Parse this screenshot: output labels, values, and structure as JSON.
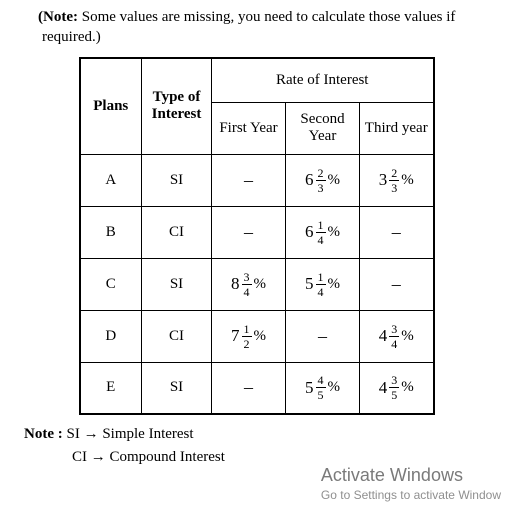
{
  "note_top_prefix": "(Note:",
  "note_top_body": " Some values are missing, you need to calculate those values if required.)",
  "header": {
    "plans": "Plans",
    "type": "Type of Interest",
    "rate": "Rate of Interest",
    "first": "First Year",
    "second": "Second Year",
    "third": "Third year"
  },
  "rows": [
    {
      "plan": "A",
      "type": "SI",
      "first": null,
      "second": {
        "w": "6",
        "n": "2",
        "d": "3"
      },
      "third": {
        "w": "3",
        "n": "2",
        "d": "3"
      }
    },
    {
      "plan": "B",
      "type": "CI",
      "first": null,
      "second": {
        "w": "6",
        "n": "1",
        "d": "4"
      },
      "third": null
    },
    {
      "plan": "C",
      "type": "SI",
      "first": {
        "w": "8",
        "n": "3",
        "d": "4"
      },
      "second": {
        "w": "5",
        "n": "1",
        "d": "4"
      },
      "third": null
    },
    {
      "plan": "D",
      "type": "CI",
      "first": {
        "w": "7",
        "n": "1",
        "d": "2"
      },
      "second": null,
      "third": {
        "w": "4",
        "n": "3",
        "d": "4"
      }
    },
    {
      "plan": "E",
      "type": "SI",
      "first": null,
      "second": {
        "w": "5",
        "n": "4",
        "d": "5"
      },
      "third": {
        "w": "4",
        "n": "3",
        "d": "5"
      }
    }
  ],
  "note_bottom": {
    "label": "Note :",
    "si": "SI",
    "si_def": "Simple Interest",
    "ci": "CI",
    "ci_def": "Compound Interest",
    "arrow": "→"
  },
  "dash": "–",
  "pct": "%",
  "watermark": {
    "line1": "Activate Windows",
    "line2": "Go to Settings to activate Window"
  },
  "style": {
    "border_color": "#000000",
    "background": "#ffffff",
    "font_family": "Times New Roman",
    "watermark_color": "#8a8a8a"
  }
}
